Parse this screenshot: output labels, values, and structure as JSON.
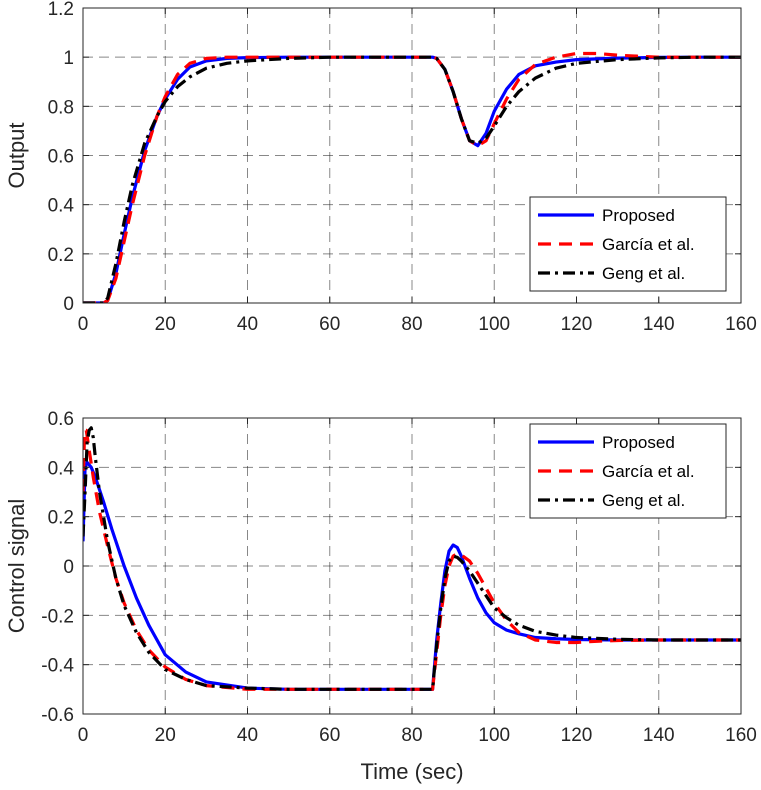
{
  "chart_data": [
    {
      "type": "line",
      "title": "",
      "xlabel": "",
      "ylabel": "Output",
      "xlim": [
        0,
        160
      ],
      "ylim": [
        0,
        1.2
      ],
      "xticks": [
        0,
        20,
        40,
        60,
        80,
        100,
        120,
        140,
        160
      ],
      "yticks": [
        0,
        0.2,
        0.4,
        0.6,
        0.8,
        1,
        1.2
      ],
      "xtick_labels": [
        "0",
        "20",
        "40",
        "60",
        "80",
        "100",
        "120",
        "140",
        "160"
      ],
      "ytick_labels": [
        "0",
        "0.2",
        "0.4",
        "0.6",
        "0.8",
        "1",
        "1.2"
      ],
      "grid": true,
      "legend_position": "center-right",
      "series": [
        {
          "name": "Proposed",
          "color": "#0000ff",
          "style": "solid",
          "x": [
            0,
            5,
            6,
            8,
            10,
            12,
            15,
            18,
            20,
            23,
            26,
            30,
            35,
            40,
            50,
            60,
            70,
            80,
            85,
            86,
            88,
            90,
            92,
            94,
            96,
            98,
            100,
            103,
            106,
            110,
            115,
            120,
            130,
            140,
            150,
            160
          ],
          "y": [
            0,
            0,
            0.01,
            0.12,
            0.28,
            0.43,
            0.62,
            0.76,
            0.83,
            0.91,
            0.96,
            0.985,
            0.995,
            0.998,
            1,
            1,
            1,
            1,
            1,
            0.995,
            0.95,
            0.86,
            0.75,
            0.66,
            0.64,
            0.69,
            0.78,
            0.87,
            0.93,
            0.965,
            0.98,
            0.99,
            0.996,
            0.999,
            1,
            1
          ]
        },
        {
          "name": "García et al.",
          "color": "#ff0000",
          "style": "dashed",
          "x": [
            0,
            5,
            6,
            8,
            10,
            12,
            15,
            18,
            20,
            23,
            26,
            30,
            35,
            40,
            50,
            60,
            70,
            80,
            85,
            86,
            88,
            90,
            92,
            94,
            96,
            98,
            100,
            103,
            106,
            110,
            115,
            120,
            125,
            130,
            140,
            150,
            160
          ],
          "y": [
            0,
            0,
            0.01,
            0.1,
            0.25,
            0.4,
            0.6,
            0.76,
            0.84,
            0.93,
            0.975,
            0.995,
            1,
            1,
            1,
            1,
            1,
            1,
            1,
            0.995,
            0.95,
            0.86,
            0.75,
            0.66,
            0.64,
            0.66,
            0.73,
            0.83,
            0.91,
            0.97,
            1.0,
            1.015,
            1.015,
            1.008,
            1.0,
            1.0,
            1.0
          ]
        },
        {
          "name": "Geng et al.",
          "color": "#000000",
          "style": "dashdot",
          "x": [
            0,
            5,
            6,
            8,
            10,
            12,
            15,
            18,
            20,
            23,
            26,
            30,
            35,
            40,
            50,
            60,
            70,
            80,
            85,
            86,
            88,
            90,
            92,
            94,
            96,
            98,
            100,
            103,
            106,
            110,
            115,
            120,
            130,
            140,
            150,
            160
          ],
          "y": [
            0,
            0,
            0.02,
            0.16,
            0.33,
            0.48,
            0.65,
            0.76,
            0.82,
            0.88,
            0.92,
            0.955,
            0.975,
            0.985,
            0.995,
            1,
            1,
            1,
            1,
            0.995,
            0.95,
            0.86,
            0.75,
            0.66,
            0.65,
            0.67,
            0.72,
            0.8,
            0.86,
            0.915,
            0.955,
            0.975,
            0.99,
            0.997,
            1,
            1
          ]
        }
      ]
    },
    {
      "type": "line",
      "title": "",
      "xlabel": "Time (sec)",
      "ylabel": "Control signal",
      "xlim": [
        0,
        160
      ],
      "ylim": [
        -0.6,
        0.6
      ],
      "xticks": [
        0,
        20,
        40,
        60,
        80,
        100,
        120,
        140,
        160
      ],
      "yticks": [
        -0.6,
        -0.4,
        -0.2,
        0,
        0.2,
        0.4,
        0.6
      ],
      "xtick_labels": [
        "0",
        "20",
        "40",
        "60",
        "80",
        "100",
        "120",
        "140",
        "160"
      ],
      "ytick_labels": [
        "-0.6",
        "-0.4",
        "-0.2",
        "0",
        "0.2",
        "0.4",
        "0.6"
      ],
      "grid": true,
      "legend_position": "top-right",
      "series": [
        {
          "name": "Proposed",
          "color": "#0000ff",
          "style": "solid",
          "x": [
            0,
            0.5,
            1,
            2,
            3,
            5,
            7,
            10,
            13,
            16,
            20,
            25,
            30,
            40,
            50,
            60,
            70,
            80,
            85,
            86,
            87,
            88,
            89,
            90,
            91,
            92,
            94,
            96,
            98,
            100,
            103,
            106,
            110,
            115,
            120,
            130,
            140,
            150,
            160
          ],
          "y": [
            0.1,
            0.4,
            0.42,
            0.4,
            0.36,
            0.26,
            0.15,
            0.0,
            -0.13,
            -0.24,
            -0.36,
            -0.43,
            -0.47,
            -0.495,
            -0.5,
            -0.5,
            -0.5,
            -0.5,
            -0.5,
            -0.3,
            -0.15,
            -0.02,
            0.06,
            0.085,
            0.075,
            0.04,
            -0.05,
            -0.13,
            -0.19,
            -0.23,
            -0.26,
            -0.275,
            -0.29,
            -0.295,
            -0.298,
            -0.3,
            -0.3,
            -0.3,
            -0.3
          ]
        },
        {
          "name": "García et al.",
          "color": "#ff0000",
          "style": "dashed",
          "x": [
            0,
            0.4,
            0.8,
            1.5,
            2.5,
            4,
            6,
            8,
            10,
            13,
            16,
            20,
            25,
            30,
            40,
            50,
            60,
            70,
            80,
            85,
            86,
            87,
            88,
            89,
            90,
            91,
            92,
            94,
            96,
            98,
            100,
            103,
            106,
            110,
            115,
            120,
            125,
            130,
            140,
            150,
            160
          ],
          "y": [
            0.3,
            0.55,
            0.55,
            0.47,
            0.36,
            0.22,
            0.08,
            -0.05,
            -0.15,
            -0.26,
            -0.34,
            -0.41,
            -0.46,
            -0.485,
            -0.5,
            -0.5,
            -0.5,
            -0.5,
            -0.5,
            -0.5,
            -0.35,
            -0.2,
            -0.08,
            0.0,
            0.04,
            0.05,
            0.045,
            0.02,
            -0.03,
            -0.09,
            -0.15,
            -0.22,
            -0.27,
            -0.3,
            -0.31,
            -0.31,
            -0.305,
            -0.302,
            -0.3,
            -0.3,
            -0.3
          ]
        },
        {
          "name": "Geng et al.",
          "color": "#000000",
          "style": "dashdot",
          "x": [
            0,
            0.5,
            1,
            1.5,
            2,
            2.5,
            3,
            4,
            6,
            8,
            10,
            13,
            16,
            20,
            25,
            30,
            40,
            50,
            60,
            70,
            80,
            85,
            86,
            87,
            88,
            89,
            90,
            91,
            92,
            94,
            96,
            98,
            100,
            103,
            106,
            110,
            115,
            120,
            130,
            140,
            150,
            160
          ],
          "y": [
            0.12,
            0.3,
            0.5,
            0.55,
            0.56,
            0.52,
            0.44,
            0.3,
            0.1,
            -0.05,
            -0.16,
            -0.27,
            -0.35,
            -0.42,
            -0.46,
            -0.485,
            -0.495,
            -0.5,
            -0.5,
            -0.5,
            -0.5,
            -0.5,
            -0.32,
            -0.17,
            -0.05,
            0.02,
            0.04,
            0.035,
            0.02,
            -0.02,
            -0.07,
            -0.12,
            -0.17,
            -0.21,
            -0.24,
            -0.265,
            -0.28,
            -0.29,
            -0.297,
            -0.3,
            -0.3,
            -0.3
          ]
        }
      ]
    }
  ]
}
